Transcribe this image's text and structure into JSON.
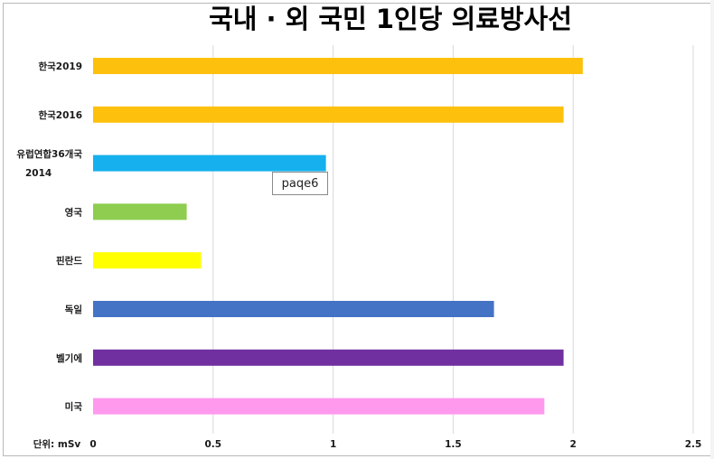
{
  "chart_data": {
    "type": "bar",
    "orientation": "horizontal",
    "title": "국내 · 외 국민 1인당 의료방사선",
    "unit_label": "단위: mSv",
    "categories": [
      [
        "한국2019"
      ],
      [
        "한국2016"
      ],
      [
        "유럽연합36개국",
        "2014"
      ],
      [
        "영국"
      ],
      [
        "핀란드"
      ],
      [
        "독일"
      ],
      [
        "벨기에"
      ],
      [
        "미국"
      ]
    ],
    "values": [
      2.04,
      1.96,
      0.97,
      0.39,
      0.45,
      1.67,
      1.96,
      1.88
    ],
    "colors": [
      "#fdc00c",
      "#fdc00c",
      "#16b0ee",
      "#8ecd4f",
      "#ffff00",
      "#4472c4",
      "#7030a0",
      "#ff99ee"
    ],
    "xlim": [
      0,
      2.5
    ],
    "xticks": [
      "0",
      "0.5",
      "1",
      "1.5",
      "2",
      "2.5"
    ],
    "grid": true
  },
  "tooltip": {
    "text": "paqe6"
  }
}
